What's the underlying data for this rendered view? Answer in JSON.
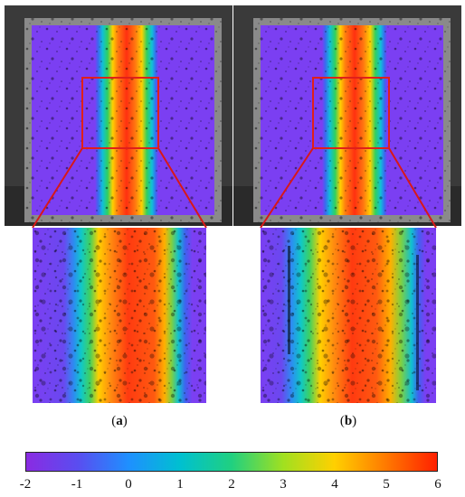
{
  "panels": [
    {
      "caption_open": "(",
      "caption_letter": "a",
      "caption_close": ")"
    },
    {
      "caption_open": "(",
      "caption_letter": "b",
      "caption_close": ")"
    }
  ],
  "colorbar": {
    "min": -2,
    "max": 6,
    "tick_labels": [
      "-2",
      "-1",
      "0",
      "1",
      "2",
      "3",
      "4",
      "5",
      "6"
    ],
    "colors": [
      "#8a2be2",
      "#5a4df0",
      "#1e90ff",
      "#00c0d0",
      "#20d080",
      "#a0e020",
      "#ffd000",
      "#ff7a00",
      "#ff2000"
    ]
  },
  "colors": {
    "specimen_purple": "#7a3ff0",
    "highlight_box": "#e0201a",
    "connector": "#d81818"
  }
}
